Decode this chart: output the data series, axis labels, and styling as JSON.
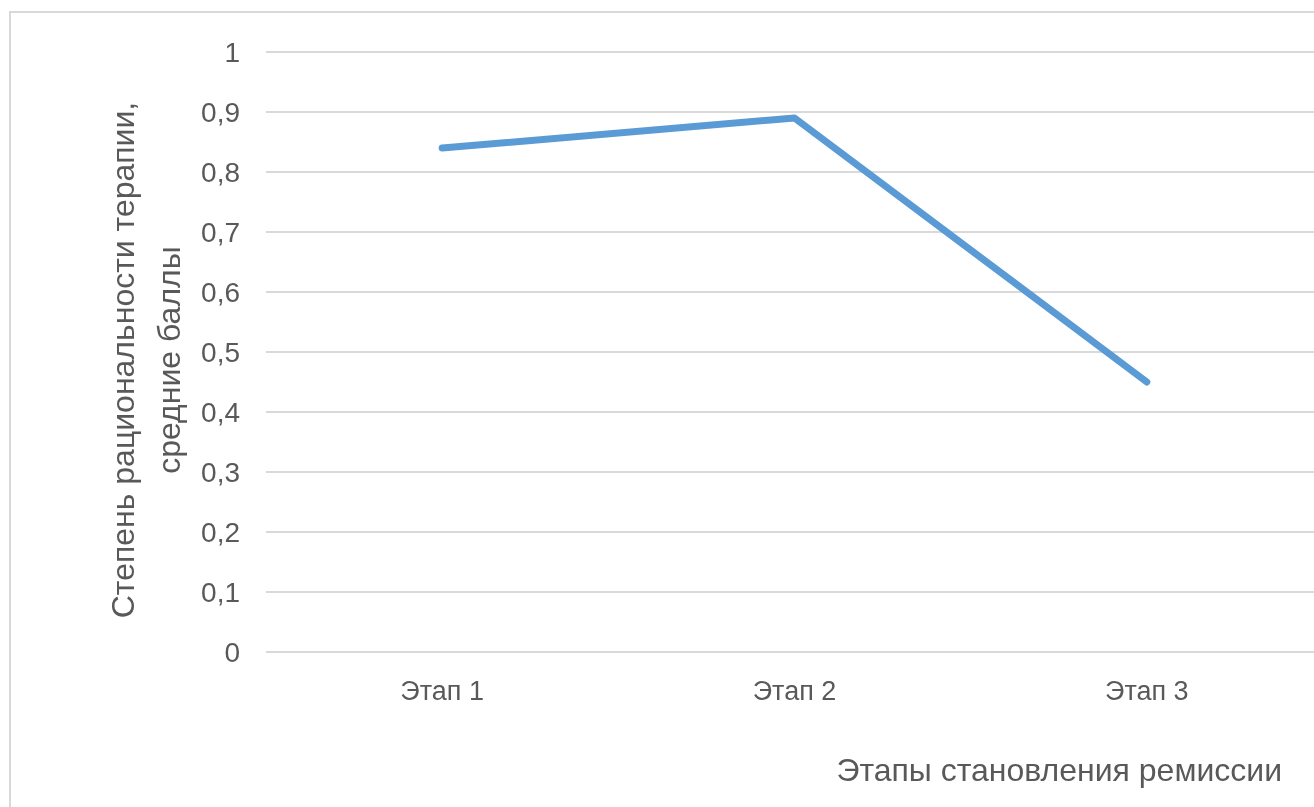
{
  "chart_data": {
    "type": "line",
    "xlabel": "Этапы становления ремиссии",
    "ylabel": "Степень рациональности терапии, средние баллы",
    "categories": [
      "Этап 1",
      "Этап 2",
      "Этап 3"
    ],
    "series": [
      {
        "color": "#5b9bd5",
        "values": [
          0.84,
          0.89,
          0.45
        ]
      }
    ],
    "ylim": [
      0,
      1
    ],
    "yticks": [
      0,
      {
        "value": 0.1,
        "label": "0,1"
      },
      {
        "value": 0.2,
        "label": "0,2"
      },
      {
        "value": 0.3,
        "label": "0,3"
      },
      {
        "value": 0.4,
        "label": "0,4"
      },
      {
        "value": 0.5,
        "label": "0,5"
      },
      {
        "value": 0.6,
        "label": "0,6"
      },
      {
        "value": 0.7,
        "label": "0,7"
      },
      {
        "value": 0.8,
        "label": "0,8"
      },
      {
        "value": 0.9,
        "label": "0,9"
      },
      1
    ],
    "grid": "y",
    "marker": "none",
    "line_style": "solid"
  }
}
